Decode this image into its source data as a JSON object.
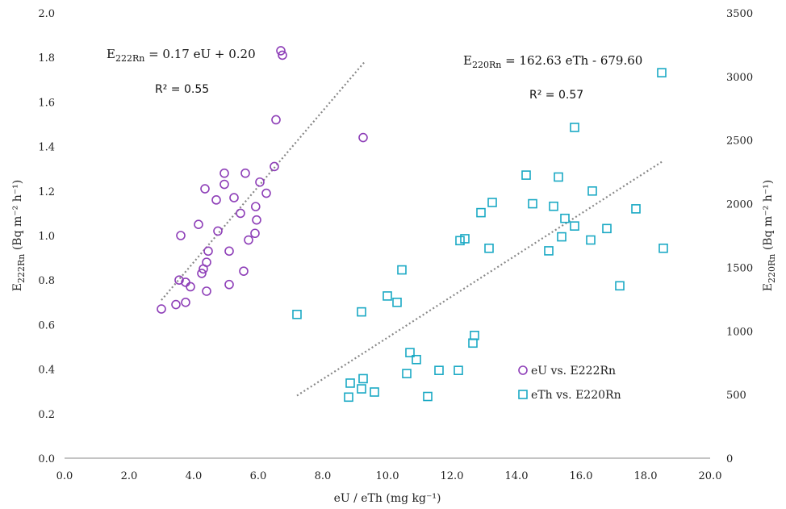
{
  "chart_data": {
    "type": "scatter",
    "xlabel": "eU / eTh (mg kg⁻¹)",
    "ylabel_left": {
      "pre": "E",
      "sub": "222Rn",
      "post": " (Bq m⁻² h⁻¹)"
    },
    "ylabel_right": {
      "pre": "E",
      "sub": "220Rn",
      "post": " (Bq m⁻² h⁻¹)"
    },
    "xlim": [
      0,
      20
    ],
    "ylim_left": [
      0,
      2
    ],
    "ylim_right": [
      0,
      3500
    ],
    "x_ticks": [
      "0.0",
      "2.0",
      "4.0",
      "6.0",
      "8.0",
      "10.0",
      "12.0",
      "14.0",
      "16.0",
      "18.0",
      "20.0"
    ],
    "y_left_ticks": [
      "0.0",
      "0.2",
      "0.4",
      "0.6",
      "0.8",
      "1.0",
      "1.2",
      "1.4",
      "1.6",
      "1.8",
      "2.0"
    ],
    "y_right_ticks": [
      "0",
      "500",
      "1000",
      "1500",
      "2000",
      "2500",
      "3000",
      "3500"
    ],
    "grid": false,
    "legend_position": "bottom-right",
    "series": [
      {
        "name": "eU vs. E222Rn",
        "axis": "left",
        "marker": "circle",
        "color": "#8e3fb8",
        "points": [
          [
            3.0,
            0.67
          ],
          [
            3.45,
            0.69
          ],
          [
            3.55,
            0.8
          ],
          [
            3.6,
            1.0
          ],
          [
            3.75,
            0.79
          ],
          [
            3.75,
            0.7
          ],
          [
            3.9,
            0.77
          ],
          [
            4.15,
            1.05
          ],
          [
            4.25,
            0.83
          ],
          [
            4.3,
            0.85
          ],
          [
            4.35,
            1.21
          ],
          [
            4.4,
            0.75
          ],
          [
            4.4,
            0.88
          ],
          [
            4.45,
            0.93
          ],
          [
            4.7,
            1.16
          ],
          [
            4.75,
            1.02
          ],
          [
            4.95,
            1.23
          ],
          [
            4.95,
            1.28
          ],
          [
            5.1,
            0.93
          ],
          [
            5.1,
            0.78
          ],
          [
            5.25,
            1.17
          ],
          [
            5.45,
            1.1
          ],
          [
            5.55,
            0.84
          ],
          [
            5.6,
            1.28
          ],
          [
            5.7,
            0.98
          ],
          [
            5.9,
            1.01
          ],
          [
            5.92,
            1.13
          ],
          [
            5.95,
            1.07
          ],
          [
            6.05,
            1.24
          ],
          [
            6.25,
            1.19
          ],
          [
            6.5,
            1.31
          ],
          [
            6.55,
            1.52
          ],
          [
            6.7,
            1.83
          ],
          [
            6.75,
            1.81
          ],
          [
            9.25,
            1.44
          ]
        ]
      },
      {
        "name": "eTh vs. E220Rn",
        "axis": "right",
        "marker": "square",
        "color": "#1aa9c4",
        "points": [
          [
            7.2,
            1130
          ],
          [
            8.8,
            480
          ],
          [
            8.85,
            590
          ],
          [
            9.2,
            545
          ],
          [
            9.2,
            1150
          ],
          [
            9.25,
            625
          ],
          [
            9.6,
            520
          ],
          [
            10.0,
            1275
          ],
          [
            10.3,
            1225
          ],
          [
            10.45,
            1480
          ],
          [
            10.6,
            665
          ],
          [
            10.7,
            830
          ],
          [
            10.9,
            775
          ],
          [
            11.25,
            485
          ],
          [
            11.6,
            690
          ],
          [
            12.2,
            690
          ],
          [
            12.25,
            1710
          ],
          [
            12.4,
            1725
          ],
          [
            12.65,
            905
          ],
          [
            12.7,
            965
          ],
          [
            12.9,
            1930
          ],
          [
            13.15,
            1650
          ],
          [
            13.25,
            2010
          ],
          [
            14.3,
            2225
          ],
          [
            14.5,
            2000
          ],
          [
            15.0,
            1630
          ],
          [
            15.15,
            1980
          ],
          [
            15.3,
            2210
          ],
          [
            15.4,
            1740
          ],
          [
            15.5,
            1885
          ],
          [
            15.8,
            1825
          ],
          [
            15.8,
            2600
          ],
          [
            16.3,
            1715
          ],
          [
            16.35,
            2100
          ],
          [
            16.8,
            1805
          ],
          [
            17.2,
            1355
          ],
          [
            17.7,
            1960
          ],
          [
            18.5,
            3030
          ],
          [
            18.55,
            1650
          ]
        ]
      }
    ],
    "trendlines": [
      {
        "axis": "left",
        "x_range": [
          3.0,
          9.3
        ],
        "slope": 0.17,
        "intercept": 0.2,
        "color": "#888888"
      },
      {
        "axis": "right",
        "x_range": [
          7.2,
          18.5
        ],
        "slope": 162.63,
        "intercept": -679.6,
        "color": "#888888"
      }
    ],
    "annotations": {
      "eq_left": {
        "pre": "E",
        "sub": "222Rn",
        "post": " = 0.17 eU + 0.20"
      },
      "r2_left": "R² = 0.55",
      "eq_right": {
        "pre": "E",
        "sub": "220Rn",
        "post": " = 162.63 eTh - 679.60"
      },
      "r2_right": "R² = 0.57"
    }
  }
}
